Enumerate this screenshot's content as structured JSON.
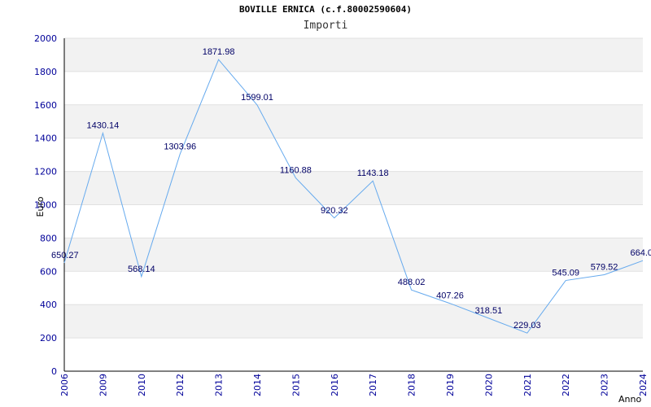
{
  "chart_data": {
    "type": "line",
    "title": "BOVILLE ERNICA (c.f.80002590604)",
    "subtitle": "Importi",
    "xlabel": "Anno",
    "ylabel": "Euro",
    "categories": [
      "2006",
      "2009",
      "2010",
      "2012",
      "2013",
      "2014",
      "2015",
      "2016",
      "2017",
      "2018",
      "2019",
      "2020",
      "2021",
      "2022",
      "2023",
      "2024"
    ],
    "series": [
      {
        "values": [
          650.27,
          1430.14,
          568.14,
          1303.96,
          1871.98,
          1599.01,
          1160.88,
          920.32,
          1143.18,
          488.02,
          407.26,
          318.51,
          229.03,
          545.09,
          579.52,
          664.0
        ],
        "labels": [
          "650.27",
          "1430.14",
          "568.14",
          "1303.96",
          "1871.98",
          "1599.01",
          "1160.88",
          "920.32",
          "1143.18",
          "488.02",
          "407.26",
          "318.51",
          "229.03",
          "545.09",
          "579.52",
          "664.0"
        ]
      }
    ],
    "ylim": [
      0,
      2000
    ],
    "yticks": [
      "0",
      "200",
      "400",
      "600",
      "800",
      "1000",
      "1200",
      "1400",
      "1600",
      "1800",
      "2000"
    ],
    "grid": true,
    "colors": {
      "line": "#66aaee",
      "band": "#f2f2f2",
      "axis_text": "#000099",
      "label_text": "#000066"
    }
  }
}
